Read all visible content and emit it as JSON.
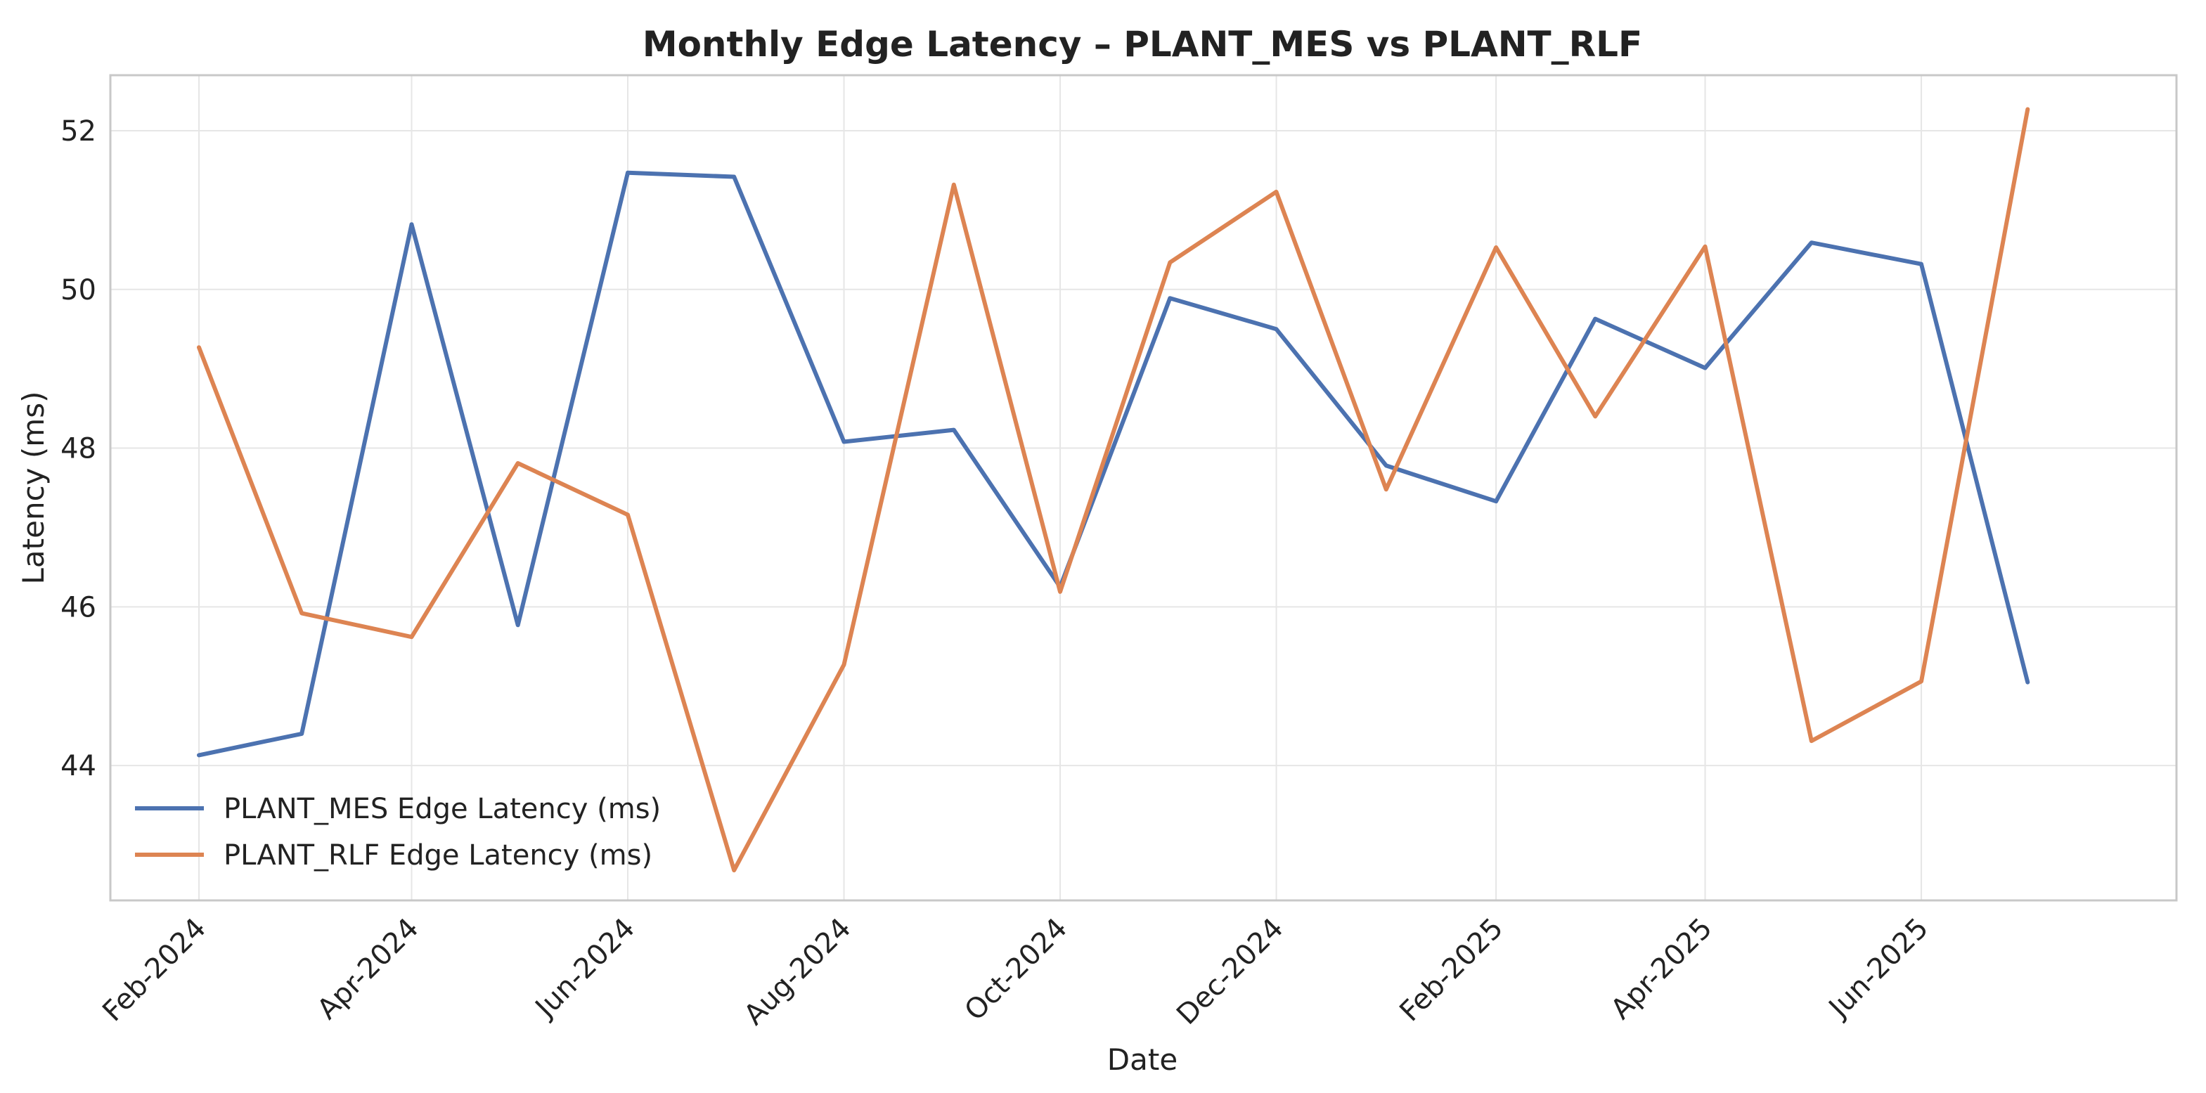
{
  "chart_data": {
    "type": "line",
    "title": "Monthly Edge Latency – PLANT_MES vs PLANT_RLF",
    "xlabel": "Date",
    "ylabel": "Latency (ms)",
    "x": [
      "2024-02",
      "2024-03",
      "2024-04",
      "2024-05",
      "2024-06",
      "2024-07",
      "2024-08",
      "2024-09",
      "2024-10",
      "2024-11",
      "2024-12",
      "2025-01",
      "2025-02",
      "2025-03",
      "2025-04",
      "2025-05",
      "2025-06",
      "2025-07"
    ],
    "x_tick_labels": [
      {
        "x": "2024-02",
        "label": "Feb-2024"
      },
      {
        "x": "2024-04",
        "label": "Apr-2024"
      },
      {
        "x": "2024-06",
        "label": "Jun-2024"
      },
      {
        "x": "2024-08",
        "label": "Aug-2024"
      },
      {
        "x": "2024-10",
        "label": "Oct-2024"
      },
      {
        "x": "2024-12",
        "label": "Dec-2024"
      },
      {
        "x": "2025-02",
        "label": "Feb-2025"
      },
      {
        "x": "2025-04",
        "label": "Apr-2025"
      },
      {
        "x": "2025-06",
        "label": "Jun-2025"
      }
    ],
    "y_ticks": [
      44,
      46,
      48,
      50,
      52
    ],
    "xlim": [
      "2024-01-07",
      "2025-08-12"
    ],
    "ylim": [
      42.3,
      52.7
    ],
    "grid": true,
    "legend_position": "lower-left",
    "series": [
      {
        "name": "PLANT_MES Edge Latency (ms)",
        "color": "#4c72b0",
        "values": [
          44.13,
          44.4,
          50.82,
          45.77,
          51.47,
          51.42,
          48.08,
          48.23,
          46.25,
          49.89,
          49.5,
          47.78,
          47.33,
          49.63,
          49.01,
          50.59,
          50.32,
          45.05
        ]
      },
      {
        "name": "PLANT_RLF Edge Latency (ms)",
        "color": "#dd8452",
        "values": [
          49.27,
          45.92,
          45.62,
          47.81,
          47.16,
          42.68,
          45.27,
          51.32,
          46.19,
          50.34,
          51.23,
          47.48,
          50.53,
          48.4,
          50.54,
          44.31,
          45.06,
          52.27
        ]
      }
    ]
  }
}
